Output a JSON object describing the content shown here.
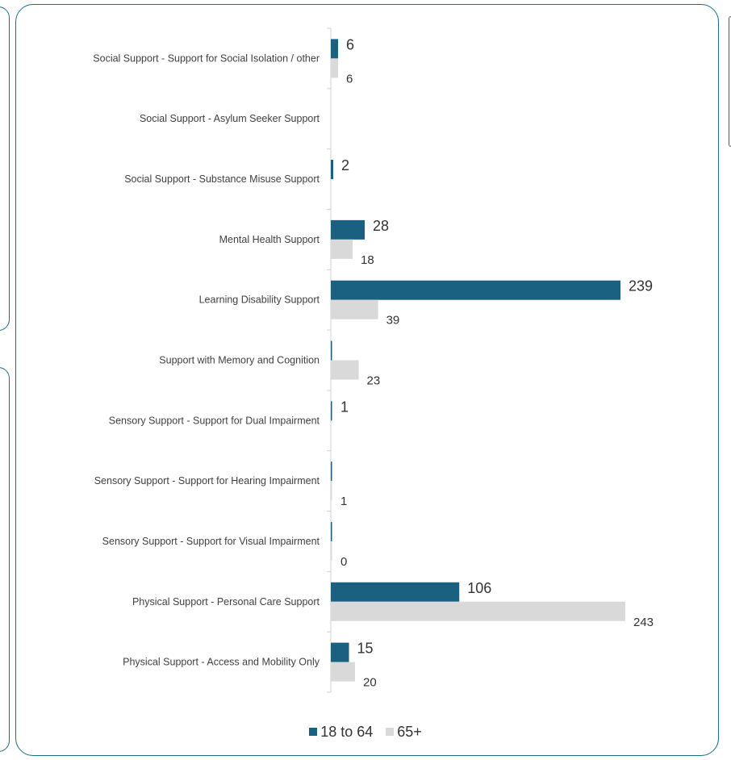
{
  "chart_data": {
    "type": "bar",
    "orientation": "horizontal",
    "categories": [
      "Social Support - Support for Social Isolation / other",
      "Social Support - Asylum Seeker Support",
      "Social Support - Substance Misuse Support",
      "Mental Health Support",
      "Learning Disability Support",
      "Support with Memory and Cognition",
      "Sensory Support - Support for Dual Impairment",
      "Sensory Support - Support for Hearing Impairment",
      "Sensory Support - Support for Visual Impairment",
      "Physical Support - Personal Care Support",
      "Physical Support - Access and Mobility Only"
    ],
    "series": [
      {
        "name": "18 to 64",
        "color": "#1a6080",
        "values": [
          6,
          null,
          2,
          28,
          239,
          0,
          1,
          0,
          0,
          106,
          15
        ],
        "labels": [
          "6",
          "",
          "2",
          "28",
          "239",
          "",
          "1",
          "",
          "",
          "106",
          "15"
        ]
      },
      {
        "name": "65+",
        "color": "#d9d9d9",
        "values": [
          6,
          null,
          null,
          18,
          39,
          23,
          null,
          1,
          0,
          243,
          20
        ],
        "labels": [
          "6",
          "",
          "",
          "18",
          "39",
          "23",
          "",
          "1",
          "0",
          "243",
          "20"
        ]
      }
    ],
    "title": "",
    "xlabel": "",
    "ylabel": "",
    "xlim": [
      0,
      243
    ],
    "grid": false,
    "axis_tick_labels_shown": false,
    "legend_position": "bottom"
  },
  "legend": {
    "items": [
      {
        "label": "18 to 64",
        "color": "#1a6080"
      },
      {
        "label": "65+",
        "color": "#d9d9d9"
      }
    ]
  }
}
